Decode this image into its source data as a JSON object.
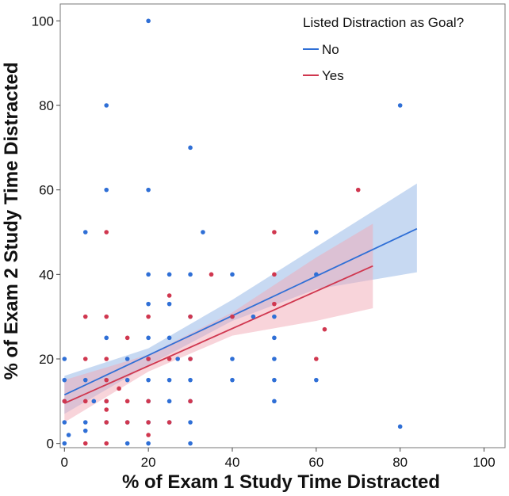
{
  "chart_data": {
    "type": "scatter",
    "title": "",
    "xlabel": "% of Exam 1 Study Time Distracted",
    "ylabel": "% of Exam 2 Study Time Distracted",
    "xlim": [
      -1,
      105
    ],
    "ylim": [
      -1,
      104
    ],
    "xticks": [
      0,
      20,
      40,
      60,
      80,
      100
    ],
    "yticks": [
      0,
      20,
      40,
      60,
      80,
      100
    ],
    "grid": false,
    "legend": {
      "title": "Listed Distraction as Goal?",
      "position": "top-right",
      "entries": [
        "No",
        "Yes"
      ]
    },
    "series": [
      {
        "name": "No",
        "color": "#2f6fd6",
        "band_color": "#8fb4e6",
        "points": [
          [
            0,
            20
          ],
          [
            0,
            15
          ],
          [
            0,
            10
          ],
          [
            0,
            5
          ],
          [
            0,
            0
          ],
          [
            1,
            2
          ],
          [
            5,
            50
          ],
          [
            5,
            15
          ],
          [
            5,
            5
          ],
          [
            5,
            3
          ],
          [
            7,
            10
          ],
          [
            10,
            80
          ],
          [
            10,
            60
          ],
          [
            10,
            25
          ],
          [
            10,
            10
          ],
          [
            10,
            5
          ],
          [
            15,
            20
          ],
          [
            15,
            15
          ],
          [
            15,
            5
          ],
          [
            15,
            0
          ],
          [
            20,
            100
          ],
          [
            20,
            60
          ],
          [
            20,
            40
          ],
          [
            20,
            33
          ],
          [
            20,
            25
          ],
          [
            20,
            20
          ],
          [
            20,
            15
          ],
          [
            20,
            10
          ],
          [
            20,
            5
          ],
          [
            20,
            0
          ],
          [
            25,
            40
          ],
          [
            25,
            33
          ],
          [
            25,
            25
          ],
          [
            25,
            15
          ],
          [
            25,
            10
          ],
          [
            25,
            5
          ],
          [
            27,
            20
          ],
          [
            30,
            70
          ],
          [
            30,
            40
          ],
          [
            30,
            30
          ],
          [
            30,
            20
          ],
          [
            30,
            15
          ],
          [
            30,
            10
          ],
          [
            30,
            5
          ],
          [
            30,
            0
          ],
          [
            33,
            50
          ],
          [
            40,
            40
          ],
          [
            40,
            20
          ],
          [
            40,
            15
          ],
          [
            40,
            30
          ],
          [
            45,
            30
          ],
          [
            50,
            30
          ],
          [
            50,
            25
          ],
          [
            50,
            20
          ],
          [
            50,
            15
          ],
          [
            50,
            10
          ],
          [
            60,
            50
          ],
          [
            60,
            40
          ],
          [
            60,
            15
          ],
          [
            80,
            80
          ],
          [
            80,
            4
          ]
        ],
        "fit": {
          "x": [
            0,
            84
          ],
          "y": [
            11.5,
            50.8
          ]
        },
        "ci_upper": {
          "x": [
            0,
            20,
            40,
            60,
            84
          ],
          "y": [
            16,
            22.5,
            34,
            46.5,
            61.5
          ]
        },
        "ci_lower": {
          "x": [
            0,
            20,
            40,
            60,
            84
          ],
          "y": [
            7,
            18.5,
            29,
            36.5,
            40.5
          ]
        }
      },
      {
        "name": "Yes",
        "color": "#d0374f",
        "band_color": "#f2a9b5",
        "points": [
          [
            0,
            10
          ],
          [
            5,
            30
          ],
          [
            5,
            20
          ],
          [
            5,
            10
          ],
          [
            5,
            0
          ],
          [
            10,
            50
          ],
          [
            10,
            30
          ],
          [
            10,
            20
          ],
          [
            10,
            15
          ],
          [
            10,
            10
          ],
          [
            10,
            8
          ],
          [
            10,
            5
          ],
          [
            10,
            0
          ],
          [
            13,
            13
          ],
          [
            15,
            25
          ],
          [
            15,
            10
          ],
          [
            15,
            5
          ],
          [
            20,
            30
          ],
          [
            20,
            20
          ],
          [
            20,
            10
          ],
          [
            20,
            5
          ],
          [
            20,
            2
          ],
          [
            25,
            35
          ],
          [
            25,
            20
          ],
          [
            25,
            5
          ],
          [
            30,
            30
          ],
          [
            30,
            20
          ],
          [
            30,
            10
          ],
          [
            35,
            40
          ],
          [
            40,
            30
          ],
          [
            50,
            50
          ],
          [
            50,
            40
          ],
          [
            50,
            33
          ],
          [
            60,
            20
          ],
          [
            62,
            27
          ],
          [
            70,
            60
          ]
        ],
        "fit": {
          "x": [
            0,
            73.5
          ],
          "y": [
            9.5,
            42
          ]
        },
        "ci_upper": {
          "x": [
            0,
            20,
            40,
            60,
            73.5
          ],
          "y": [
            15,
            21,
            31,
            44,
            52
          ]
        },
        "ci_lower": {
          "x": [
            0,
            20,
            40,
            60,
            73.5
          ],
          "y": [
            5,
            17,
            25.5,
            29,
            32
          ]
        }
      }
    ]
  }
}
